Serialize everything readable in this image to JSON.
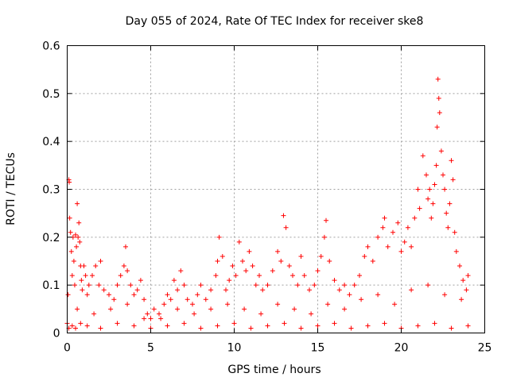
{
  "chart_data": {
    "type": "scatter",
    "title": "Day 055 of 2024, Rate Of TEC Index for receiver ske8",
    "xlabel": "GPS time / hours",
    "ylabel": "ROTI / TECUs",
    "xlim": [
      0,
      25
    ],
    "ylim": [
      0,
      0.6
    ],
    "xticks": [
      0,
      5,
      10,
      15,
      20,
      25
    ],
    "xtick_labels": [
      "0",
      "5",
      "10",
      "15",
      "20",
      "25"
    ],
    "yticks": [
      0,
      0.1,
      0.2,
      0.3,
      0.4,
      0.5,
      0.6
    ],
    "ytick_labels": [
      "0",
      "0.1",
      "0.2",
      "0.3",
      "0.4",
      "0.5",
      "0.6"
    ],
    "grid": true,
    "marker": "+",
    "color": "#ff0000",
    "series": [
      {
        "name": "ROTI",
        "x": [
          0.0,
          0.05,
          0.1,
          0.12,
          0.15,
          0.2,
          0.25,
          0.3,
          0.35,
          0.4,
          0.45,
          0.5,
          0.55,
          0.6,
          0.65,
          0.7,
          0.75,
          0.8,
          0.85,
          0.9,
          1.0,
          1.1,
          1.2,
          1.3,
          1.5,
          1.7,
          1.9,
          2.0,
          2.2,
          2.5,
          2.8,
          3.0,
          3.2,
          3.4,
          3.5,
          3.6,
          3.8,
          4.0,
          4.2,
          4.4,
          4.6,
          4.8,
          5.0,
          5.2,
          5.5,
          5.8,
          6.0,
          6.2,
          6.4,
          6.6,
          6.8,
          7.0,
          7.2,
          7.5,
          7.8,
          8.0,
          8.3,
          8.6,
          8.9,
          9.0,
          9.1,
          9.3,
          9.5,
          9.7,
          9.9,
          10.1,
          10.3,
          10.5,
          10.7,
          10.9,
          11.1,
          11.3,
          11.5,
          11.7,
          12.0,
          12.3,
          12.6,
          12.8,
          12.95,
          13.1,
          13.3,
          13.5,
          13.8,
          14.0,
          14.2,
          14.5,
          14.8,
          15.0,
          15.2,
          15.4,
          15.5,
          15.7,
          16.0,
          16.3,
          16.6,
          16.9,
          17.2,
          17.5,
          17.8,
          18.0,
          18.3,
          18.6,
          18.9,
          19.0,
          19.2,
          19.5,
          19.8,
          20.0,
          20.2,
          20.4,
          20.6,
          20.8,
          21.0,
          21.1,
          21.3,
          21.5,
          21.6,
          21.7,
          21.8,
          21.9,
          22.0,
          22.1,
          22.15,
          22.2,
          22.25,
          22.3,
          22.4,
          22.5,
          22.6,
          22.7,
          22.8,
          22.9,
          23.0,
          23.1,
          23.2,
          23.3,
          23.5,
          23.7,
          23.9,
          24.0,
          0.1,
          0.3,
          0.5,
          0.8,
          1.2,
          2.0,
          3.0,
          4.0,
          5.0,
          6.0,
          7.0,
          8.0,
          9.0,
          10.0,
          11.0,
          12.0,
          13.0,
          14.0,
          15.0,
          16.0,
          17.0,
          18.0,
          19.0,
          20.0,
          21.0,
          22.0,
          23.0,
          24.0,
          0.6,
          1.6,
          2.6,
          3.6,
          4.6,
          5.6,
          6.6,
          7.6,
          8.6,
          9.6,
          10.6,
          11.6,
          12.6,
          13.6,
          14.6,
          15.6,
          16.6,
          17.6,
          18.6,
          19.6,
          20.6,
          21.6,
          22.6,
          23.6
        ],
        "y": [
          0.02,
          0.08,
          0.32,
          0.315,
          0.24,
          0.21,
          0.17,
          0.12,
          0.2,
          0.15,
          0.1,
          0.205,
          0.18,
          0.27,
          0.2,
          0.23,
          0.19,
          0.14,
          0.11,
          0.09,
          0.14,
          0.12,
          0.08,
          0.1,
          0.12,
          0.14,
          0.1,
          0.15,
          0.09,
          0.08,
          0.07,
          0.1,
          0.12,
          0.14,
          0.18,
          0.13,
          0.1,
          0.08,
          0.09,
          0.11,
          0.07,
          0.04,
          0.03,
          0.05,
          0.04,
          0.06,
          0.08,
          0.07,
          0.11,
          0.09,
          0.13,
          0.1,
          0.07,
          0.06,
          0.08,
          0.1,
          0.07,
          0.09,
          0.12,
          0.15,
          0.2,
          0.16,
          0.09,
          0.11,
          0.14,
          0.12,
          0.19,
          0.15,
          0.13,
          0.17,
          0.14,
          0.1,
          0.12,
          0.09,
          0.1,
          0.13,
          0.17,
          0.15,
          0.245,
          0.22,
          0.14,
          0.12,
          0.1,
          0.16,
          0.12,
          0.09,
          0.1,
          0.13,
          0.16,
          0.2,
          0.235,
          0.15,
          0.11,
          0.09,
          0.1,
          0.08,
          0.1,
          0.12,
          0.16,
          0.18,
          0.15,
          0.2,
          0.22,
          0.24,
          0.18,
          0.21,
          0.23,
          0.17,
          0.19,
          0.22,
          0.18,
          0.24,
          0.3,
          0.26,
          0.37,
          0.33,
          0.28,
          0.3,
          0.24,
          0.27,
          0.31,
          0.35,
          0.43,
          0.53,
          0.49,
          0.46,
          0.38,
          0.33,
          0.3,
          0.25,
          0.22,
          0.27,
          0.36,
          0.32,
          0.21,
          0.17,
          0.14,
          0.11,
          0.09,
          0.12,
          0.01,
          0.015,
          0.01,
          0.02,
          0.015,
          0.01,
          0.02,
          0.015,
          0.01,
          0.015,
          0.02,
          0.01,
          0.015,
          0.02,
          0.01,
          0.015,
          0.02,
          0.01,
          0.015,
          0.02,
          0.01,
          0.015,
          0.02,
          0.01,
          0.015,
          0.02,
          0.01,
          0.015,
          0.05,
          0.04,
          0.05,
          0.06,
          0.03,
          0.03,
          0.05,
          0.04,
          0.05,
          0.06,
          0.05,
          0.04,
          0.06,
          0.05,
          0.04,
          0.06,
          0.05,
          0.07,
          0.08,
          0.06,
          0.09,
          0.1,
          0.08,
          0.07
        ]
      }
    ]
  }
}
